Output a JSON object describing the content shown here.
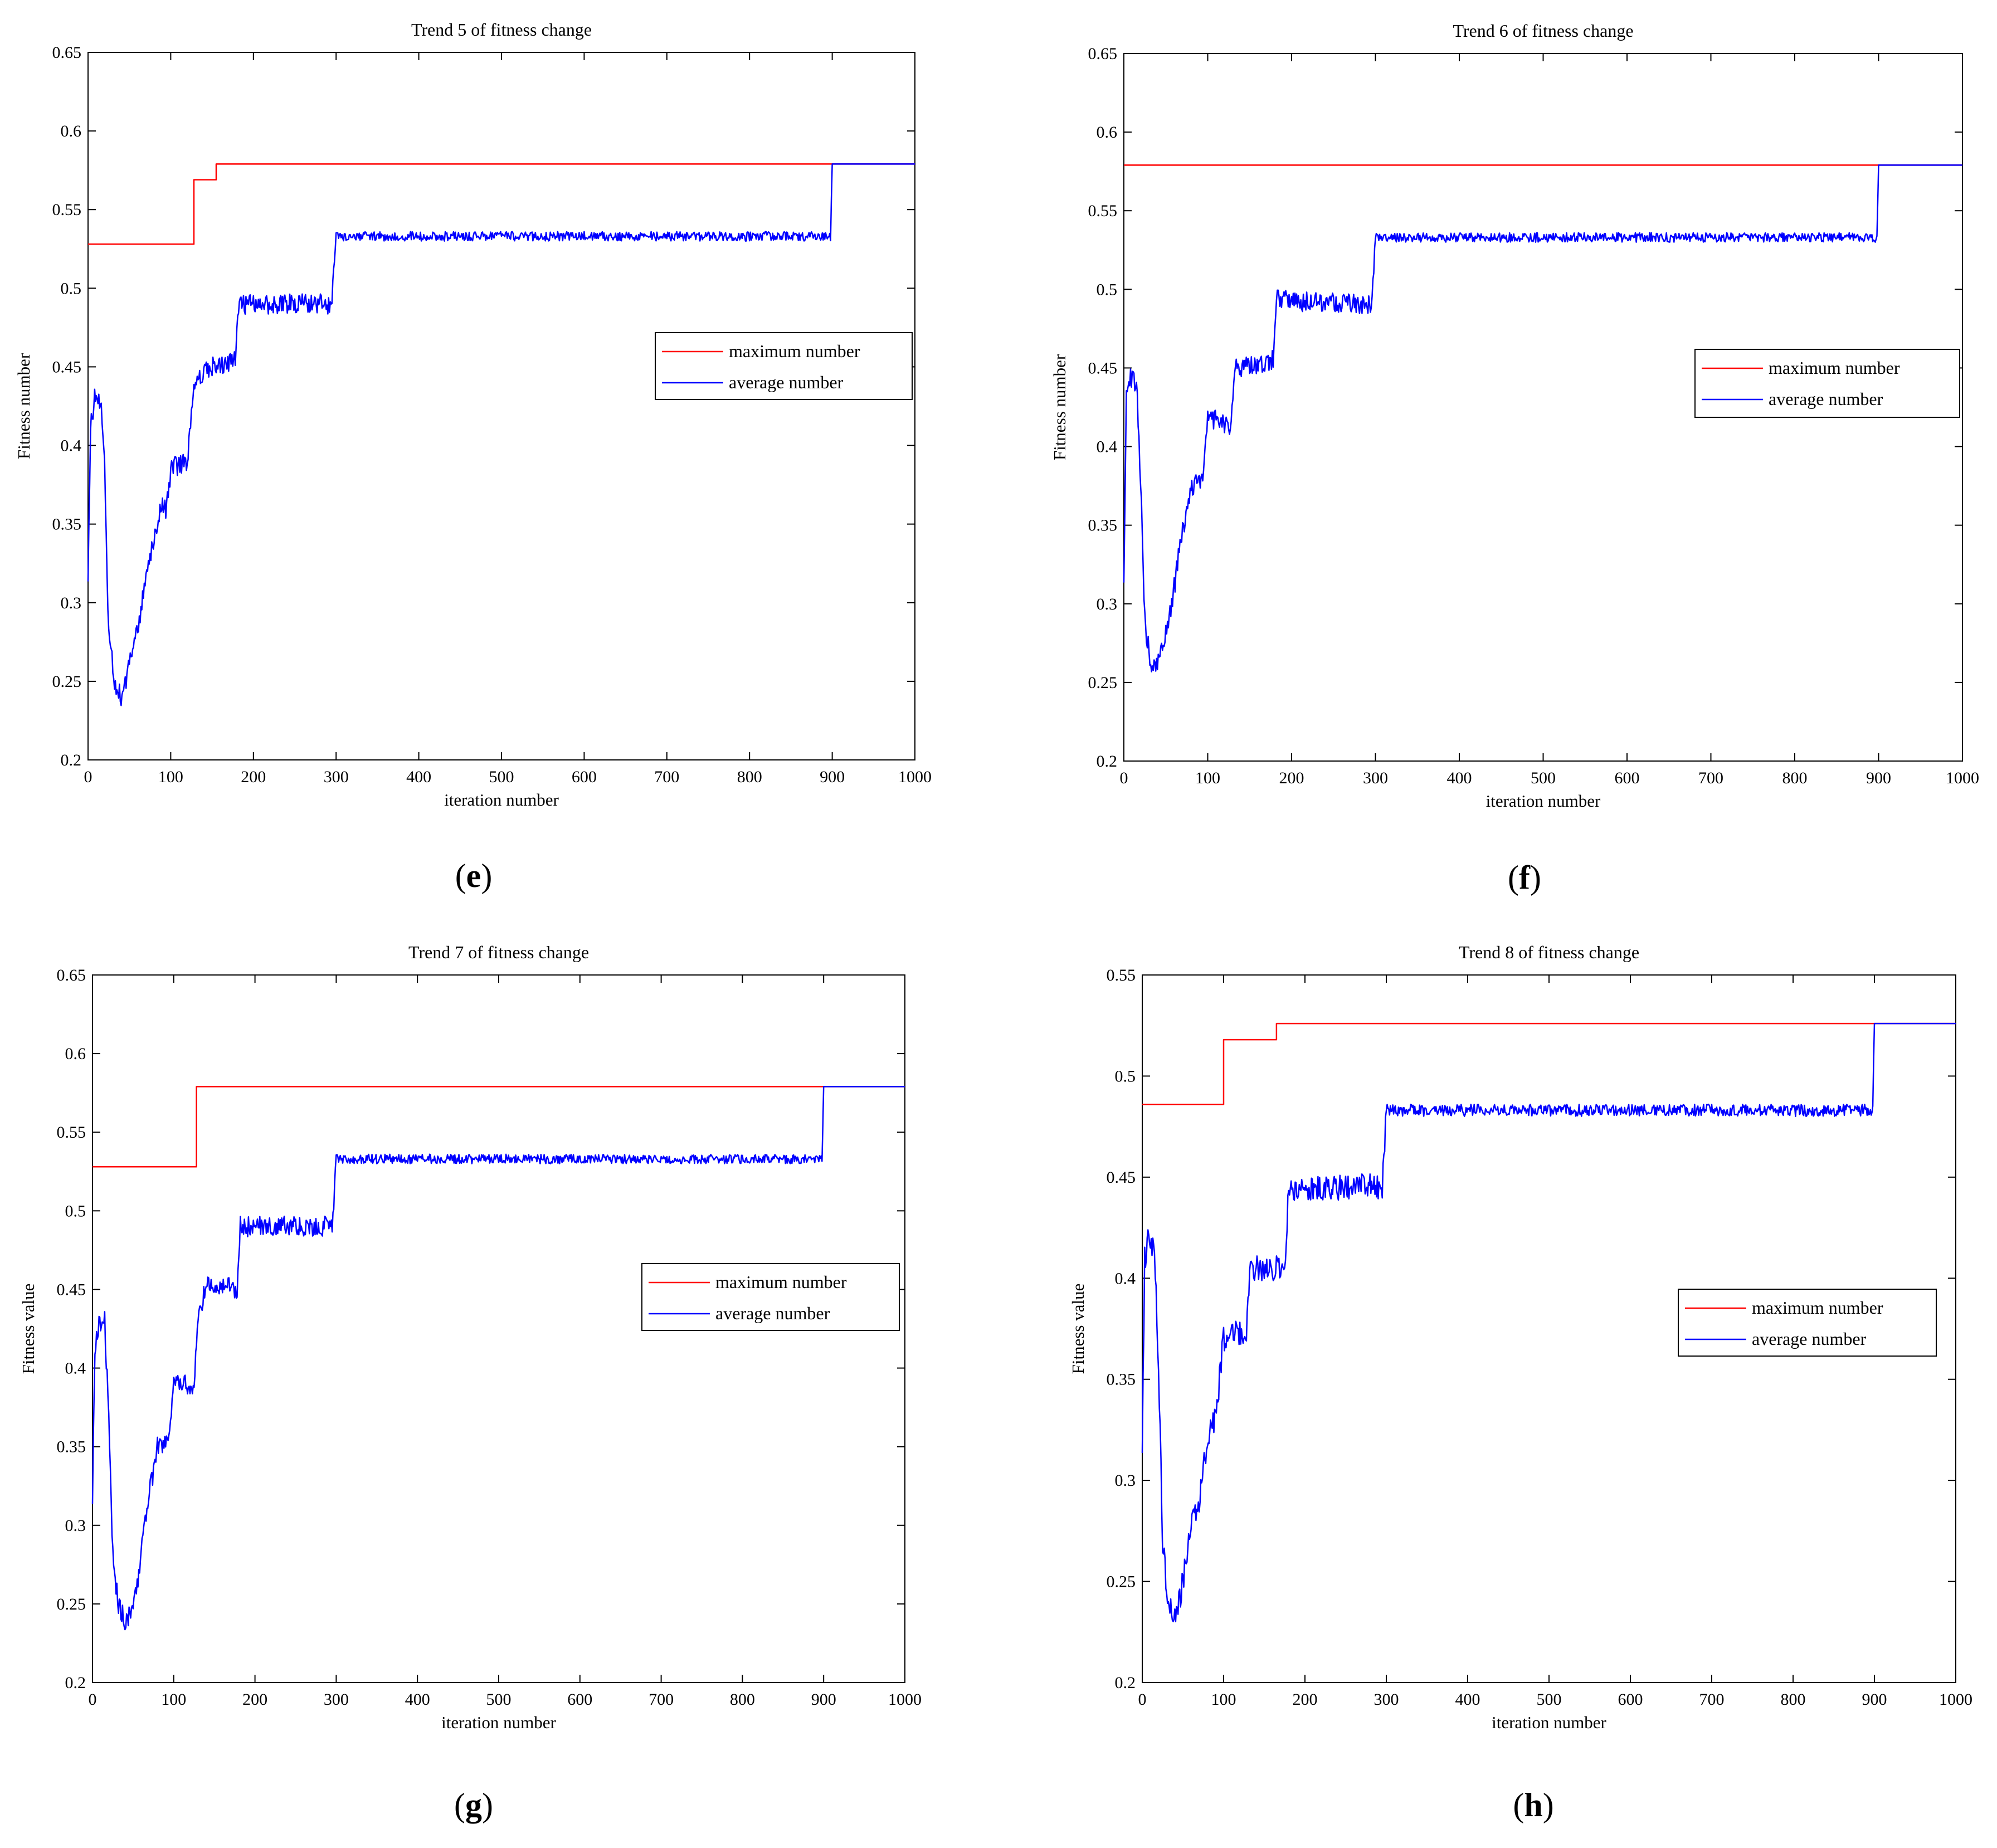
{
  "colors": {
    "maximum": "#ff0000",
    "average": "#0000ff",
    "axes": "#000000"
  },
  "chart_data": [
    {
      "id": "e",
      "type": "line",
      "caption": "e",
      "title": "Trend 5 of fitness change",
      "xlabel": "iteration number",
      "ylabel": "Fitness number",
      "xlim": [
        0,
        1000
      ],
      "ylim": [
        0.2,
        0.65
      ],
      "xticks": [
        0,
        100,
        200,
        300,
        400,
        500,
        600,
        700,
        800,
        900,
        1000
      ],
      "yticks": [
        0.2,
        0.25,
        0.3,
        0.35,
        0.4,
        0.45,
        0.5,
        0.55,
        0.6,
        0.65
      ],
      "legend_position": "right-middle",
      "series": [
        {
          "name": "maximum number",
          "color": "#ff0000",
          "step_points": [
            [
              0,
              0.528
            ],
            [
              128,
              0.528
            ],
            [
              128,
              0.569
            ],
            [
              155,
              0.569
            ],
            [
              155,
              0.579
            ],
            [
              1000,
              0.579
            ]
          ]
        },
        {
          "name": "average number",
          "color": "#0000ff",
          "noise": 0.003,
          "points": [
            [
              0,
              0.32
            ],
            [
              3,
              0.41
            ],
            [
              8,
              0.43
            ],
            [
              15,
              0.43
            ],
            [
              20,
              0.39
            ],
            [
              25,
              0.28
            ],
            [
              32,
              0.25
            ],
            [
              40,
              0.24
            ],
            [
              48,
              0.255
            ],
            [
              55,
              0.27
            ],
            [
              62,
              0.29
            ],
            [
              70,
              0.32
            ],
            [
              80,
              0.34
            ],
            [
              88,
              0.36
            ],
            [
              95,
              0.36
            ],
            [
              100,
              0.385
            ],
            [
              120,
              0.39
            ],
            [
              128,
              0.44
            ],
            [
              150,
              0.45
            ],
            [
              178,
              0.455
            ],
            [
              182,
              0.49
            ],
            [
              295,
              0.49
            ],
            [
              300,
              0.533
            ],
            [
              898,
              0.533
            ],
            [
              900,
              0.579
            ],
            [
              1000,
              0.579
            ]
          ]
        }
      ]
    },
    {
      "id": "f",
      "type": "line",
      "caption": "f",
      "title": "Trend 6 of fitness change",
      "xlabel": "iteration number",
      "ylabel": "Fitness number",
      "xlim": [
        0,
        1000
      ],
      "ylim": [
        0.2,
        0.65
      ],
      "xticks": [
        0,
        100,
        200,
        300,
        400,
        500,
        600,
        700,
        800,
        900,
        1000
      ],
      "yticks": [
        0.2,
        0.25,
        0.3,
        0.35,
        0.4,
        0.45,
        0.5,
        0.55,
        0.6,
        0.65
      ],
      "legend_position": "right-middle",
      "series": [
        {
          "name": "maximum number",
          "color": "#ff0000",
          "step_points": [
            [
              0,
              0.579
            ],
            [
              1000,
              0.579
            ]
          ]
        },
        {
          "name": "average number",
          "color": "#0000ff",
          "noise": 0.003,
          "points": [
            [
              0,
              0.32
            ],
            [
              3,
              0.43
            ],
            [
              8,
              0.445
            ],
            [
              15,
              0.44
            ],
            [
              20,
              0.38
            ],
            [
              25,
              0.29
            ],
            [
              32,
              0.26
            ],
            [
              42,
              0.265
            ],
            [
              50,
              0.28
            ],
            [
              60,
              0.31
            ],
            [
              68,
              0.34
            ],
            [
              75,
              0.36
            ],
            [
              85,
              0.38
            ],
            [
              95,
              0.38
            ],
            [
              100,
              0.42
            ],
            [
              128,
              0.41
            ],
            [
              132,
              0.45
            ],
            [
              178,
              0.455
            ],
            [
              182,
              0.493
            ],
            [
              295,
              0.49
            ],
            [
              300,
              0.533
            ],
            [
              898,
              0.533
            ],
            [
              900,
              0.579
            ],
            [
              1000,
              0.579
            ]
          ]
        }
      ]
    },
    {
      "id": "g",
      "type": "line",
      "caption": "g",
      "title": "Trend 7 of fitness change",
      "xlabel": "iteration number",
      "ylabel": "Fitness value",
      "xlim": [
        0,
        1000
      ],
      "ylim": [
        0.2,
        0.65
      ],
      "xticks": [
        0,
        100,
        200,
        300,
        400,
        500,
        600,
        700,
        800,
        900,
        1000
      ],
      "yticks": [
        0.2,
        0.25,
        0.3,
        0.35,
        0.4,
        0.45,
        0.5,
        0.55,
        0.6,
        0.65
      ],
      "legend_position": "right-middle",
      "series": [
        {
          "name": "maximum number",
          "color": "#ff0000",
          "step_points": [
            [
              0,
              0.528
            ],
            [
              128,
              0.528
            ],
            [
              128,
              0.579
            ],
            [
              1000,
              0.579
            ]
          ]
        },
        {
          "name": "average number",
          "color": "#0000ff",
          "noise": 0.003,
          "points": [
            [
              0,
              0.32
            ],
            [
              3,
              0.41
            ],
            [
              8,
              0.43
            ],
            [
              15,
              0.43
            ],
            [
              20,
              0.37
            ],
            [
              25,
              0.28
            ],
            [
              32,
              0.25
            ],
            [
              40,
              0.24
            ],
            [
              48,
              0.245
            ],
            [
              55,
              0.26
            ],
            [
              62,
              0.29
            ],
            [
              70,
              0.32
            ],
            [
              80,
              0.35
            ],
            [
              95,
              0.355
            ],
            [
              100,
              0.39
            ],
            [
              125,
              0.39
            ],
            [
              130,
              0.43
            ],
            [
              140,
              0.455
            ],
            [
              178,
              0.45
            ],
            [
              182,
              0.49
            ],
            [
              295,
              0.49
            ],
            [
              300,
              0.533
            ],
            [
              898,
              0.533
            ],
            [
              900,
              0.579
            ],
            [
              1000,
              0.579
            ]
          ]
        }
      ]
    },
    {
      "id": "h",
      "type": "line",
      "caption": "h",
      "title": "Trend 8 of fitness change",
      "xlabel": "iteration number",
      "ylabel": "Fitness value",
      "xlim": [
        0,
        1000
      ],
      "ylim": [
        0.2,
        0.55
      ],
      "xticks": [
        0,
        100,
        200,
        300,
        400,
        500,
        600,
        700,
        800,
        900,
        1000
      ],
      "yticks": [
        0.2,
        0.25,
        0.3,
        0.35,
        0.4,
        0.45,
        0.5,
        0.55
      ],
      "legend_position": "right-middle",
      "series": [
        {
          "name": "maximum number",
          "color": "#ff0000",
          "step_points": [
            [
              0,
              0.486
            ],
            [
              100,
              0.486
            ],
            [
              100,
              0.518
            ],
            [
              165,
              0.518
            ],
            [
              165,
              0.526
            ],
            [
              1000,
              0.526
            ]
          ]
        },
        {
          "name": "average number",
          "color": "#0000ff",
          "noise": 0.003,
          "points": [
            [
              0,
              0.32
            ],
            [
              3,
              0.41
            ],
            [
              8,
              0.42
            ],
            [
              15,
              0.415
            ],
            [
              20,
              0.36
            ],
            [
              25,
              0.27
            ],
            [
              32,
              0.24
            ],
            [
              40,
              0.23
            ],
            [
              48,
              0.245
            ],
            [
              55,
              0.265
            ],
            [
              62,
              0.28
            ],
            [
              70,
              0.29
            ],
            [
              80,
              0.32
            ],
            [
              90,
              0.33
            ],
            [
              100,
              0.37
            ],
            [
              128,
              0.375
            ],
            [
              132,
              0.405
            ],
            [
              175,
              0.405
            ],
            [
              180,
              0.445
            ],
            [
              295,
              0.445
            ],
            [
              300,
              0.483
            ],
            [
              898,
              0.483
            ],
            [
              900,
              0.526
            ],
            [
              1000,
              0.526
            ]
          ]
        }
      ]
    }
  ]
}
